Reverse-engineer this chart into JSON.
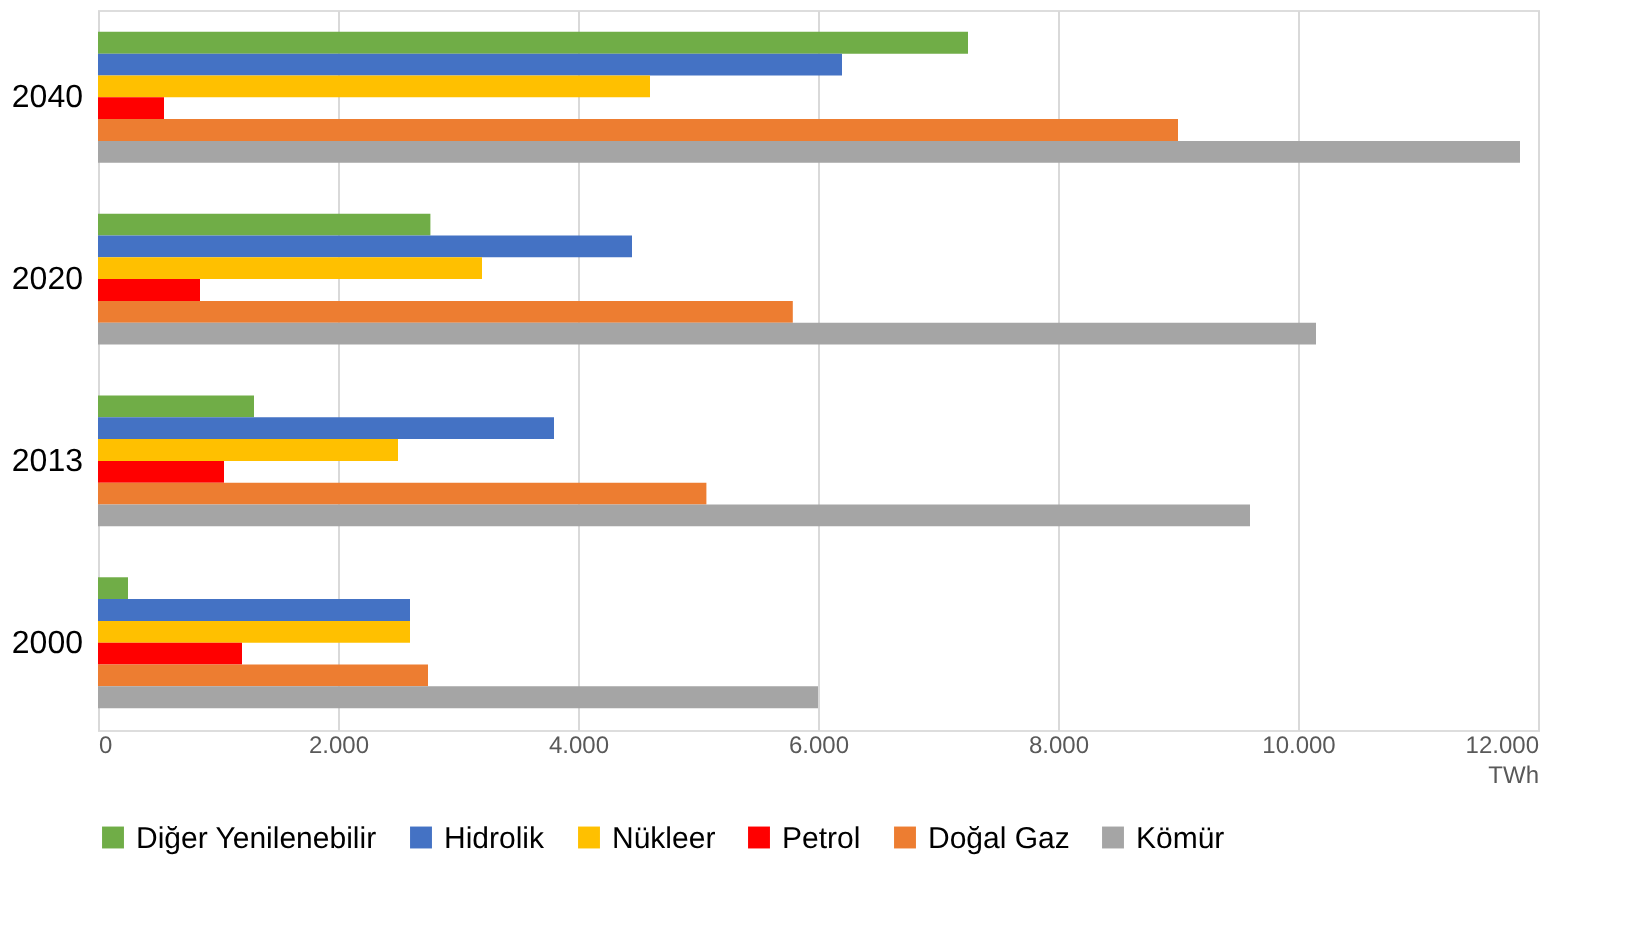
{
  "chart_data": {
    "type": "bar",
    "orientation": "horizontal",
    "categories": [
      "2040",
      "2020",
      "2013",
      "2000"
    ],
    "series": [
      {
        "name": "Diğer Yenilenebilir",
        "color": "#70ad47",
        "values": [
          7250,
          2770,
          1300,
          250
        ]
      },
      {
        "name": "Hidrolik",
        "color": "#4472c4",
        "values": [
          6200,
          4450,
          3800,
          2600
        ]
      },
      {
        "name": "Nükleer",
        "color": "#ffc000",
        "values": [
          4600,
          3200,
          2500,
          2600
        ]
      },
      {
        "name": "Petrol",
        "color": "#ff0000",
        "values": [
          550,
          850,
          1050,
          1200
        ]
      },
      {
        "name": "Doğal Gaz",
        "color": "#ed7d31",
        "values": [
          9000,
          5790,
          5070,
          2750
        ]
      },
      {
        "name": "Kömür",
        "color": "#a5a5a5",
        "values": [
          11850,
          10150,
          9600,
          6000
        ]
      }
    ],
    "xlabel": "TWh",
    "xlim": [
      0,
      12000
    ],
    "xticks": [
      {
        "value": 0,
        "label": "0"
      },
      {
        "value": 2000,
        "label": "2.000"
      },
      {
        "value": 4000,
        "label": "4.000"
      },
      {
        "value": 6000,
        "label": "6.000"
      },
      {
        "value": 8000,
        "label": "8.000"
      },
      {
        "value": 10000,
        "label": "10.000"
      },
      {
        "value": 12000,
        "label": "12.000"
      }
    ],
    "grid": "x",
    "legend": "bottom"
  }
}
